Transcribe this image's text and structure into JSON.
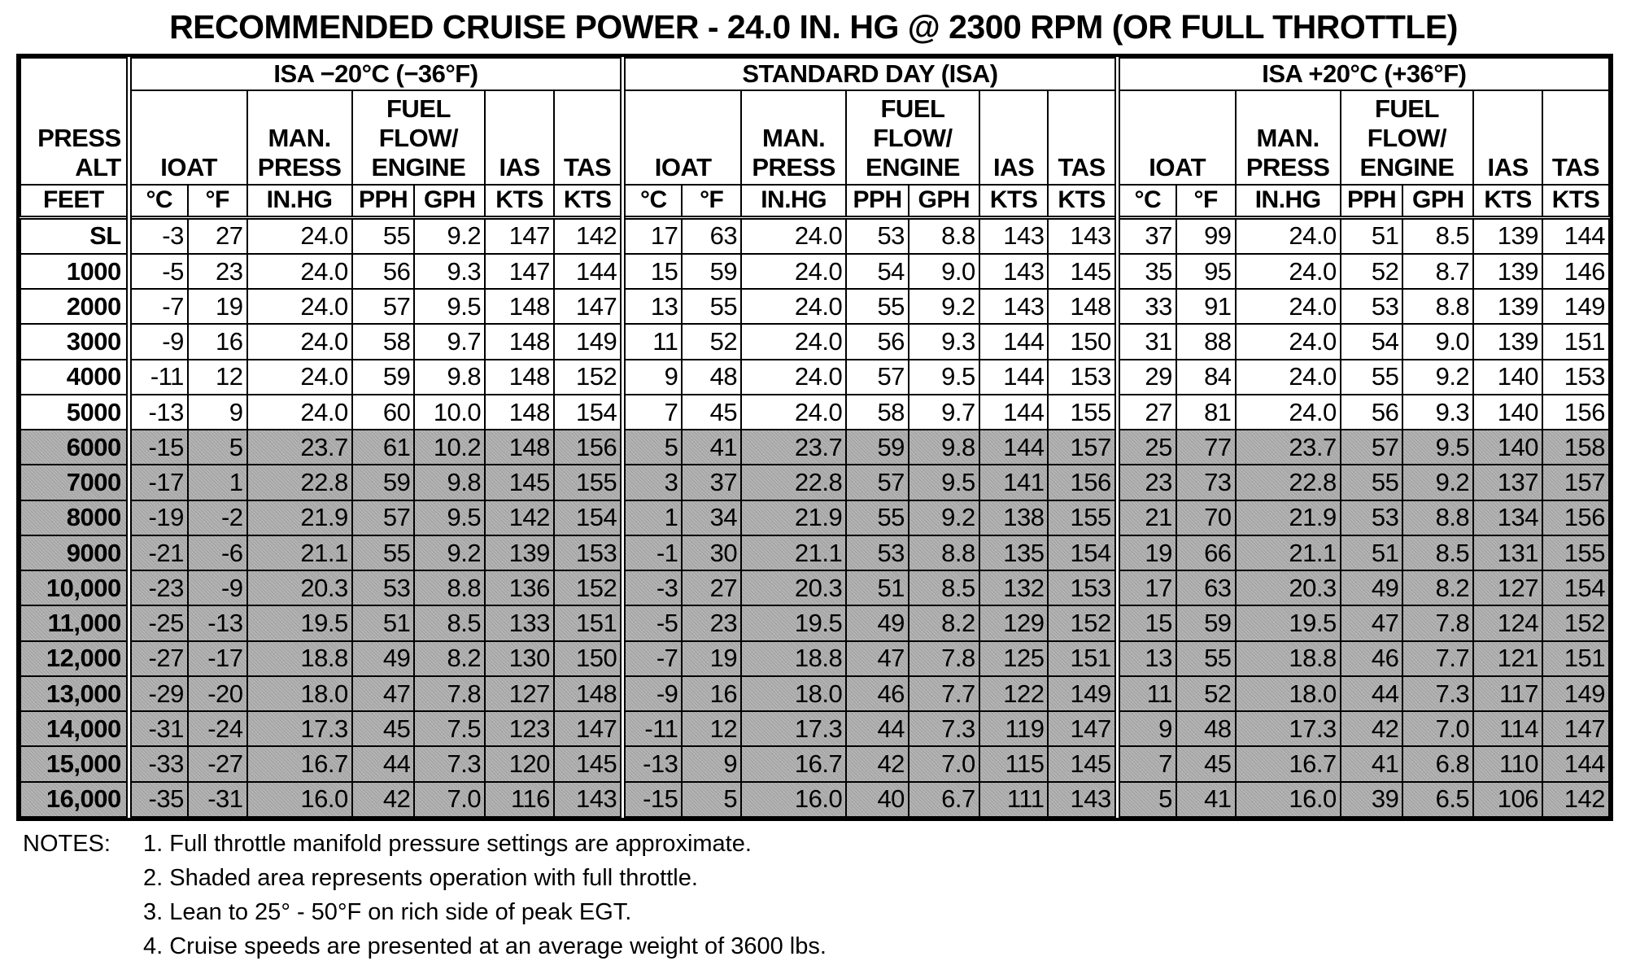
{
  "title": "RECOMMENDED CRUISE POWER - 24.0 IN. HG @ 2300 RPM (OR FULL THROTTLE)",
  "header": {
    "alt_lines": [
      "PRESS",
      "ALT"
    ],
    "alt_units": "FEET",
    "groups": [
      {
        "label": "ISA −20°C (−36°F)"
      },
      {
        "label": "STANDARD DAY (ISA)"
      },
      {
        "label": "ISA +20°C (+36°F)"
      }
    ],
    "ioat": "IOAT",
    "manpress": [
      "MAN.",
      "PRESS"
    ],
    "fuelflow": [
      "FUEL",
      "FLOW/",
      "ENGINE"
    ],
    "ias": "IAS",
    "tas": "TAS",
    "units": {
      "degc": "°C",
      "degf": "°F",
      "inhg": "IN.HG",
      "pph": "PPH",
      "gph": "GPH",
      "kts": "KTS"
    }
  },
  "rows": [
    {
      "alt": "SL",
      "c": [
        [
          "-3",
          "27",
          "24.0",
          "55",
          "9.2",
          "147",
          "142"
        ],
        [
          "17",
          "63",
          "24.0",
          "53",
          "8.8",
          "143",
          "143"
        ],
        [
          "37",
          "99",
          "24.0",
          "51",
          "8.5",
          "139",
          "144"
        ]
      ]
    },
    {
      "alt": "1000",
      "c": [
        [
          "-5",
          "23",
          "24.0",
          "56",
          "9.3",
          "147",
          "144"
        ],
        [
          "15",
          "59",
          "24.0",
          "54",
          "9.0",
          "143",
          "145"
        ],
        [
          "35",
          "95",
          "24.0",
          "52",
          "8.7",
          "139",
          "146"
        ]
      ]
    },
    {
      "alt": "2000",
      "c": [
        [
          "-7",
          "19",
          "24.0",
          "57",
          "9.5",
          "148",
          "147"
        ],
        [
          "13",
          "55",
          "24.0",
          "55",
          "9.2",
          "143",
          "148"
        ],
        [
          "33",
          "91",
          "24.0",
          "53",
          "8.8",
          "139",
          "149"
        ]
      ]
    },
    {
      "alt": "3000",
      "c": [
        [
          "-9",
          "16",
          "24.0",
          "58",
          "9.7",
          "148",
          "149"
        ],
        [
          "11",
          "52",
          "24.0",
          "56",
          "9.3",
          "144",
          "150"
        ],
        [
          "31",
          "88",
          "24.0",
          "54",
          "9.0",
          "139",
          "151"
        ]
      ]
    },
    {
      "alt": "4000",
      "c": [
        [
          "-11",
          "12",
          "24.0",
          "59",
          "9.8",
          "148",
          "152"
        ],
        [
          "9",
          "48",
          "24.0",
          "57",
          "9.5",
          "144",
          "153"
        ],
        [
          "29",
          "84",
          "24.0",
          "55",
          "9.2",
          "140",
          "153"
        ]
      ]
    },
    {
      "alt": "5000",
      "c": [
        [
          "-13",
          "9",
          "24.0",
          "60",
          "10.0",
          "148",
          "154"
        ],
        [
          "7",
          "45",
          "24.0",
          "58",
          "9.7",
          "144",
          "155"
        ],
        [
          "27",
          "81",
          "24.0",
          "56",
          "9.3",
          "140",
          "156"
        ]
      ]
    },
    {
      "alt": "6000",
      "c": [
        [
          "-15",
          "5",
          "23.7",
          "61",
          "10.2",
          "148",
          "156"
        ],
        [
          "5",
          "41",
          "23.7",
          "59",
          "9.8",
          "144",
          "157"
        ],
        [
          "25",
          "77",
          "23.7",
          "57",
          "9.5",
          "140",
          "158"
        ]
      ]
    },
    {
      "alt": "7000",
      "c": [
        [
          "-17",
          "1",
          "22.8",
          "59",
          "9.8",
          "145",
          "155"
        ],
        [
          "3",
          "37",
          "22.8",
          "57",
          "9.5",
          "141",
          "156"
        ],
        [
          "23",
          "73",
          "22.8",
          "55",
          "9.2",
          "137",
          "157"
        ]
      ]
    },
    {
      "alt": "8000",
      "c": [
        [
          "-19",
          "-2",
          "21.9",
          "57",
          "9.5",
          "142",
          "154"
        ],
        [
          "1",
          "34",
          "21.9",
          "55",
          "9.2",
          "138",
          "155"
        ],
        [
          "21",
          "70",
          "21.9",
          "53",
          "8.8",
          "134",
          "156"
        ]
      ]
    },
    {
      "alt": "9000",
      "c": [
        [
          "-21",
          "-6",
          "21.1",
          "55",
          "9.2",
          "139",
          "153"
        ],
        [
          "-1",
          "30",
          "21.1",
          "53",
          "8.8",
          "135",
          "154"
        ],
        [
          "19",
          "66",
          "21.1",
          "51",
          "8.5",
          "131",
          "155"
        ]
      ]
    },
    {
      "alt": "10,000",
      "c": [
        [
          "-23",
          "-9",
          "20.3",
          "53",
          "8.8",
          "136",
          "152"
        ],
        [
          "-3",
          "27",
          "20.3",
          "51",
          "8.5",
          "132",
          "153"
        ],
        [
          "17",
          "63",
          "20.3",
          "49",
          "8.2",
          "127",
          "154"
        ]
      ]
    },
    {
      "alt": "11,000",
      "c": [
        [
          "-25",
          "-13",
          "19.5",
          "51",
          "8.5",
          "133",
          "151"
        ],
        [
          "-5",
          "23",
          "19.5",
          "49",
          "8.2",
          "129",
          "152"
        ],
        [
          "15",
          "59",
          "19.5",
          "47",
          "7.8",
          "124",
          "152"
        ]
      ]
    },
    {
      "alt": "12,000",
      "c": [
        [
          "-27",
          "-17",
          "18.8",
          "49",
          "8.2",
          "130",
          "150"
        ],
        [
          "-7",
          "19",
          "18.8",
          "47",
          "7.8",
          "125",
          "151"
        ],
        [
          "13",
          "55",
          "18.8",
          "46",
          "7.7",
          "121",
          "151"
        ]
      ]
    },
    {
      "alt": "13,000",
      "c": [
        [
          "-29",
          "-20",
          "18.0",
          "47",
          "7.8",
          "127",
          "148"
        ],
        [
          "-9",
          "16",
          "18.0",
          "46",
          "7.7",
          "122",
          "149"
        ],
        [
          "11",
          "52",
          "18.0",
          "44",
          "7.3",
          "117",
          "149"
        ]
      ]
    },
    {
      "alt": "14,000",
      "c": [
        [
          "-31",
          "-24",
          "17.3",
          "45",
          "7.5",
          "123",
          "147"
        ],
        [
          "-11",
          "12",
          "17.3",
          "44",
          "7.3",
          "119",
          "147"
        ],
        [
          "9",
          "48",
          "17.3",
          "42",
          "7.0",
          "114",
          "147"
        ]
      ]
    },
    {
      "alt": "15,000",
      "c": [
        [
          "-33",
          "-27",
          "16.7",
          "44",
          "7.3",
          "120",
          "145"
        ],
        [
          "-13",
          "9",
          "16.7",
          "42",
          "7.0",
          "115",
          "145"
        ],
        [
          "7",
          "45",
          "16.7",
          "41",
          "6.8",
          "110",
          "144"
        ]
      ]
    },
    {
      "alt": "16,000",
      "c": [
        [
          "-35",
          "-31",
          "16.0",
          "42",
          "7.0",
          "116",
          "143"
        ],
        [
          "-15",
          "5",
          "16.0",
          "40",
          "6.7",
          "111",
          "143"
        ],
        [
          "5",
          "41",
          "16.0",
          "39",
          "6.5",
          "106",
          "142"
        ]
      ]
    }
  ],
  "shaded_from_row": 6,
  "shade_color": "#a6a6a6",
  "notes": {
    "label": "NOTES:",
    "items": [
      "1.  Full throttle manifold pressure settings are approximate.",
      "2.  Shaded area represents operation with full throttle.",
      "3.  Lean to 25° - 50°F on rich side of peak EGT.",
      "4.  Cruise speeds are presented at an average weight of 3600 lbs."
    ]
  }
}
